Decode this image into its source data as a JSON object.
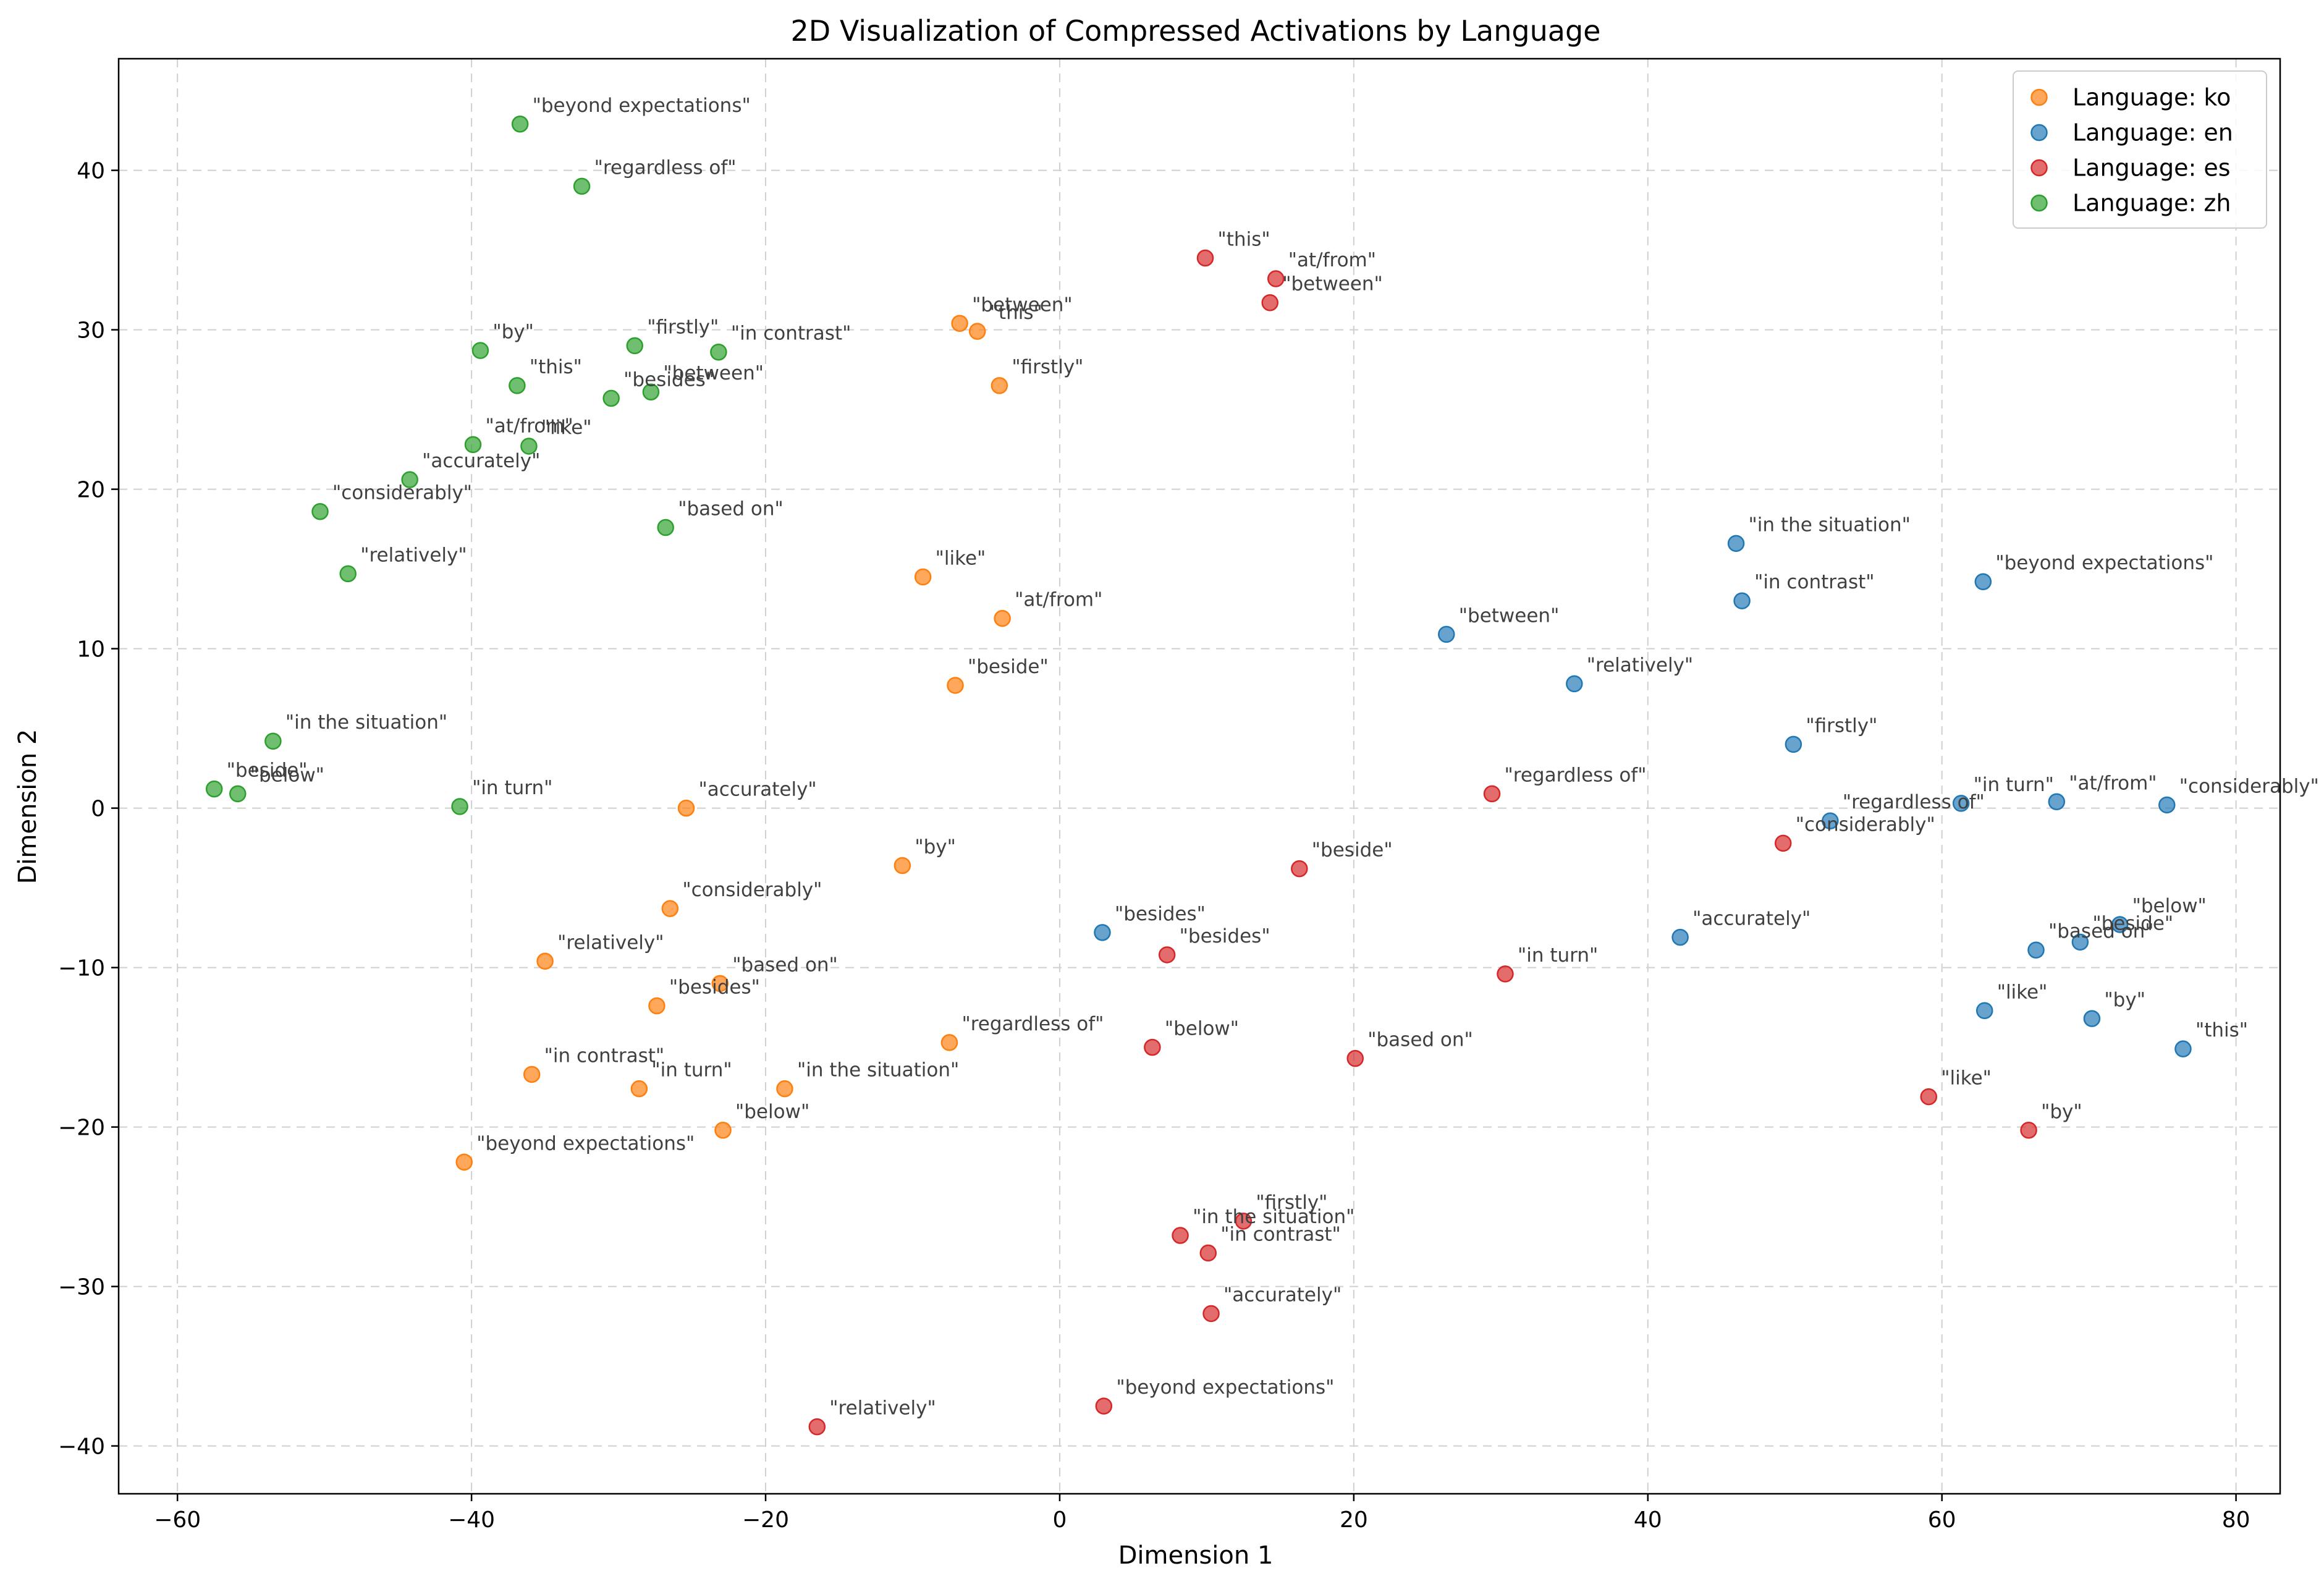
{
  "chart_data": {
    "type": "scatter",
    "title": "2D Visualization of Compressed Activations by Language",
    "xlabel": "Dimension 1",
    "ylabel": "Dimension 2",
    "xlim": [
      -64,
      83
    ],
    "ylim": [
      -43,
      47
    ],
    "xticks": [
      -60,
      -40,
      -20,
      0,
      20,
      40,
      60,
      80
    ],
    "yticks": [
      -40,
      -30,
      -20,
      -10,
      0,
      10,
      20,
      30,
      40
    ],
    "xtick_labels": [
      "−60",
      "−40",
      "−20",
      "0",
      "20",
      "40",
      "60",
      "80"
    ],
    "ytick_labels": [
      "−40",
      "−30",
      "−20",
      "−10",
      "0",
      "10",
      "20",
      "30",
      "40"
    ],
    "grid": true,
    "legend_position": "top-right",
    "series": [
      {
        "name": "Language: ko",
        "color": "#ff7f0e",
        "points": [
          {
            "label": "\"between\"",
            "x": -6.8,
            "y": 30.4
          },
          {
            "label": "\"this\"",
            "x": -5.6,
            "y": 29.9
          },
          {
            "label": "\"firstly\"",
            "x": -4.1,
            "y": 26.5
          },
          {
            "label": "\"like\"",
            "x": -9.3,
            "y": 14.5
          },
          {
            "label": "\"at/from\"",
            "x": -3.9,
            "y": 11.9
          },
          {
            "label": "\"beside\"",
            "x": -7.1,
            "y": 7.7
          },
          {
            "label": "\"accurately\"",
            "x": -25.4,
            "y": 0.0
          },
          {
            "label": "\"by\"",
            "x": -10.7,
            "y": -3.6
          },
          {
            "label": "\"considerably\"",
            "x": -26.5,
            "y": -6.3
          },
          {
            "label": "\"relatively\"",
            "x": -35.0,
            "y": -9.6
          },
          {
            "label": "\"based on\"",
            "x": -23.1,
            "y": -11.0
          },
          {
            "label": "\"besides\"",
            "x": -27.4,
            "y": -12.4
          },
          {
            "label": "\"regardless of\"",
            "x": -7.5,
            "y": -14.7
          },
          {
            "label": "\"in contrast\"",
            "x": -35.9,
            "y": -16.7
          },
          {
            "label": "\"in turn\"",
            "x": -28.6,
            "y": -17.6
          },
          {
            "label": "\"in the situation\"",
            "x": -18.7,
            "y": -17.6
          },
          {
            "label": "\"below\"",
            "x": -22.9,
            "y": -20.2
          },
          {
            "label": "\"beyond expectations\"",
            "x": -40.5,
            "y": -22.2
          }
        ]
      },
      {
        "name": "Language: en",
        "color": "#1f77b4",
        "points": [
          {
            "label": "\"in the situation\"",
            "x": 46.0,
            "y": 16.6
          },
          {
            "label": "\"in contrast\"",
            "x": 46.4,
            "y": 13.0
          },
          {
            "label": "\"beyond expectations\"",
            "x": 62.8,
            "y": 14.2
          },
          {
            "label": "\"between\"",
            "x": 26.3,
            "y": 10.9
          },
          {
            "label": "\"relatively\"",
            "x": 35.0,
            "y": 7.8
          },
          {
            "label": "\"firstly\"",
            "x": 49.9,
            "y": 4.0
          },
          {
            "label": "\"in turn\"",
            "x": 61.3,
            "y": 0.3
          },
          {
            "label": "\"at/from\"",
            "x": 67.8,
            "y": 0.4
          },
          {
            "label": "\"considerably\"",
            "x": 75.3,
            "y": 0.2
          },
          {
            "label": "\"regardless of\"",
            "x": 52.4,
            "y": -0.8
          },
          {
            "label": "\"besides\"",
            "x": 2.9,
            "y": -7.8
          },
          {
            "label": "\"accurately\"",
            "x": 42.2,
            "y": -8.1
          },
          {
            "label": "\"below\"",
            "x": 72.1,
            "y": -7.3
          },
          {
            "label": "\"beside\"",
            "x": 69.4,
            "y": -8.4
          },
          {
            "label": "\"based on\"",
            "x": 66.4,
            "y": -8.9
          },
          {
            "label": "\"like\"",
            "x": 62.9,
            "y": -12.7
          },
          {
            "label": "\"by\"",
            "x": 70.2,
            "y": -13.2
          },
          {
            "label": "\"this\"",
            "x": 76.4,
            "y": -15.1
          }
        ]
      },
      {
        "name": "Language: es",
        "color": "#d62728",
        "points": [
          {
            "label": "\"this\"",
            "x": 9.9,
            "y": 34.5
          },
          {
            "label": "\"at/from\"",
            "x": 14.7,
            "y": 33.2
          },
          {
            "label": "\"between\"",
            "x": 14.3,
            "y": 31.7
          },
          {
            "label": "\"regardless of\"",
            "x": 29.4,
            "y": 0.9
          },
          {
            "label": "\"considerably\"",
            "x": 49.2,
            "y": -2.2
          },
          {
            "label": "\"beside\"",
            "x": 16.3,
            "y": -3.8
          },
          {
            "label": "\"besides\"",
            "x": 7.3,
            "y": -9.2
          },
          {
            "label": "\"in turn\"",
            "x": 30.3,
            "y": -10.4
          },
          {
            "label": "\"below\"",
            "x": 6.3,
            "y": -15.0
          },
          {
            "label": "\"based on\"",
            "x": 20.1,
            "y": -15.7
          },
          {
            "label": "\"like\"",
            "x": 59.1,
            "y": -18.1
          },
          {
            "label": "\"by\"",
            "x": 65.9,
            "y": -20.2
          },
          {
            "label": "\"firstly\"",
            "x": 12.5,
            "y": -25.9
          },
          {
            "label": "\"in the situation\"",
            "x": 8.2,
            "y": -26.8
          },
          {
            "label": "\"in contrast\"",
            "x": 10.1,
            "y": -27.9
          },
          {
            "label": "\"accurately\"",
            "x": 10.3,
            "y": -31.7
          },
          {
            "label": "\"beyond expectations\"",
            "x": 3.0,
            "y": -37.5
          },
          {
            "label": "\"relatively\"",
            "x": -16.5,
            "y": -38.8
          }
        ]
      },
      {
        "name": "Language: zh",
        "color": "#2ca02c",
        "points": [
          {
            "label": "\"beyond expectations\"",
            "x": -36.7,
            "y": 42.9
          },
          {
            "label": "\"regardless of\"",
            "x": -32.5,
            "y": 39.0
          },
          {
            "label": "\"by\"",
            "x": -39.4,
            "y": 28.7
          },
          {
            "label": "\"firstly\"",
            "x": -28.9,
            "y": 29.0
          },
          {
            "label": "\"in contrast\"",
            "x": -23.2,
            "y": 28.6
          },
          {
            "label": "\"this\"",
            "x": -36.9,
            "y": 26.5
          },
          {
            "label": "\"besides\"",
            "x": -30.5,
            "y": 25.7
          },
          {
            "label": "\"between\"",
            "x": -27.8,
            "y": 26.1
          },
          {
            "label": "\"at/from\"",
            "x": -39.9,
            "y": 22.8
          },
          {
            "label": "\"like\"",
            "x": -36.1,
            "y": 22.7
          },
          {
            "label": "\"accurately\"",
            "x": -44.2,
            "y": 20.6
          },
          {
            "label": "\"considerably\"",
            "x": -50.3,
            "y": 18.6
          },
          {
            "label": "\"based on\"",
            "x": -26.8,
            "y": 17.6
          },
          {
            "label": "\"relatively\"",
            "x": -48.4,
            "y": 14.7
          },
          {
            "label": "\"in the situation\"",
            "x": -53.5,
            "y": 4.2
          },
          {
            "label": "\"beside\"",
            "x": -57.5,
            "y": 1.2
          },
          {
            "label": "\"below\"",
            "x": -55.9,
            "y": 0.9
          },
          {
            "label": "\"in turn\"",
            "x": -40.8,
            "y": 0.1
          }
        ]
      }
    ]
  }
}
